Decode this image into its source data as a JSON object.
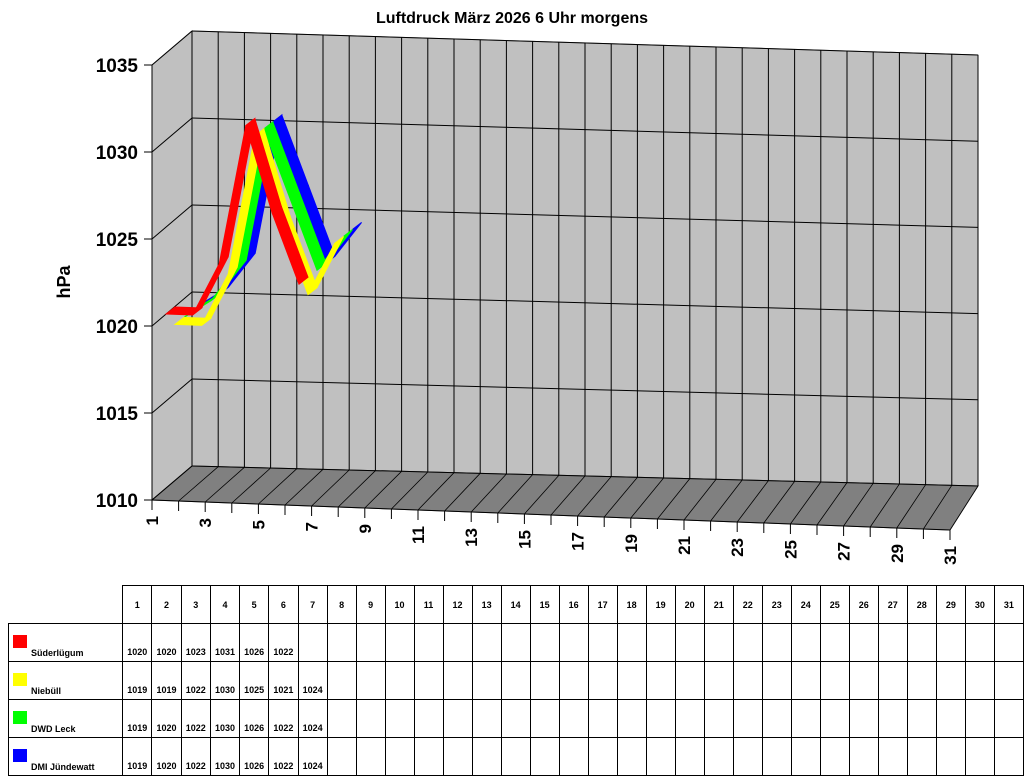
{
  "chart_data": {
    "type": "line",
    "style": "3d-ribbon",
    "title": "Luftdruck März 2026 6 Uhr morgens",
    "xlabel": "",
    "ylabel": "hPa",
    "ylim": [
      1010,
      1035
    ],
    "yticks": [
      1010,
      1015,
      1020,
      1025,
      1030,
      1035
    ],
    "xticks": [
      1,
      3,
      5,
      7,
      9,
      11,
      13,
      15,
      17,
      19,
      21,
      23,
      25,
      27,
      29,
      31
    ],
    "grid": true,
    "legend_position": "table-bottom",
    "x": [
      1,
      2,
      3,
      4,
      5,
      6,
      7,
      8,
      9,
      10,
      11,
      12,
      13,
      14,
      15,
      16,
      17,
      18,
      19,
      20,
      21,
      22,
      23,
      24,
      25,
      26,
      27,
      28,
      29,
      30,
      31
    ],
    "series": [
      {
        "name": "Süderlügum",
        "color": "#ff0000",
        "values": [
          1020,
          1020,
          1023,
          1031,
          1026,
          1022,
          null,
          null,
          null,
          null,
          null,
          null,
          null,
          null,
          null,
          null,
          null,
          null,
          null,
          null,
          null,
          null,
          null,
          null,
          null,
          null,
          null,
          null,
          null,
          null,
          null
        ]
      },
      {
        "name": "Niebüll",
        "color": "#ffff00",
        "values": [
          1019,
          1019,
          1022,
          1030,
          1025,
          1021,
          1024,
          null,
          null,
          null,
          null,
          null,
          null,
          null,
          null,
          null,
          null,
          null,
          null,
          null,
          null,
          null,
          null,
          null,
          null,
          null,
          null,
          null,
          null,
          null,
          null
        ]
      },
      {
        "name": "DWD Leck",
        "color": "#00ff00",
        "values": [
          1019,
          1020,
          1022,
          1030,
          1026,
          1022,
          1024,
          null,
          null,
          null,
          null,
          null,
          null,
          null,
          null,
          null,
          null,
          null,
          null,
          null,
          null,
          null,
          null,
          null,
          null,
          null,
          null,
          null,
          null,
          null,
          null
        ]
      },
      {
        "name": "DMI Jündewatt",
        "color": "#0000ff",
        "values": [
          1019,
          1020,
          1022,
          1030,
          1026,
          1022,
          1024,
          null,
          null,
          null,
          null,
          null,
          null,
          null,
          null,
          null,
          null,
          null,
          null,
          null,
          null,
          null,
          null,
          null,
          null,
          null,
          null,
          null,
          null,
          null,
          null
        ]
      }
    ]
  },
  "table": {
    "days": [
      "1",
      "2",
      "3",
      "4",
      "5",
      "6",
      "7",
      "8",
      "9",
      "10",
      "11",
      "12",
      "13",
      "14",
      "15",
      "16",
      "17",
      "18",
      "19",
      "20",
      "21",
      "22",
      "23",
      "24",
      "25",
      "26",
      "27",
      "28",
      "29",
      "30",
      "31"
    ],
    "rows": [
      {
        "label": "Süderlügum",
        "color": "#ff0000",
        "cells": [
          "1020",
          "1020",
          "1023",
          "1031",
          "1026",
          "1022",
          "",
          "",
          "",
          "",
          "",
          "",
          "",
          "",
          "",
          "",
          "",
          "",
          "",
          "",
          "",
          "",
          "",
          "",
          "",
          "",
          "",
          "",
          "",
          "",
          ""
        ]
      },
      {
        "label": "Niebüll",
        "color": "#ffff00",
        "cells": [
          "1019",
          "1019",
          "1022",
          "1030",
          "1025",
          "1021",
          "1024",
          "",
          "",
          "",
          "",
          "",
          "",
          "",
          "",
          "",
          "",
          "",
          "",
          "",
          "",
          "",
          "",
          "",
          "",
          "",
          "",
          "",
          "",
          "",
          ""
        ]
      },
      {
        "label": "DWD Leck",
        "color": "#00ff00",
        "cells": [
          "1019",
          "1020",
          "1022",
          "1030",
          "1026",
          "1022",
          "1024",
          "",
          "",
          "",
          "",
          "",
          "",
          "",
          "",
          "",
          "",
          "",
          "",
          "",
          "",
          "",
          "",
          "",
          "",
          "",
          "",
          "",
          "",
          "",
          ""
        ]
      },
      {
        "label": "DMI Jündewatt",
        "color": "#0000ff",
        "cells": [
          "1019",
          "1020",
          "1022",
          "1030",
          "1026",
          "1022",
          "1024",
          "",
          "",
          "",
          "",
          "",
          "",
          "",
          "",
          "",
          "",
          "",
          "",
          "",
          "",
          "",
          "",
          "",
          "",
          "",
          "",
          "",
          "",
          "",
          ""
        ]
      }
    ]
  }
}
